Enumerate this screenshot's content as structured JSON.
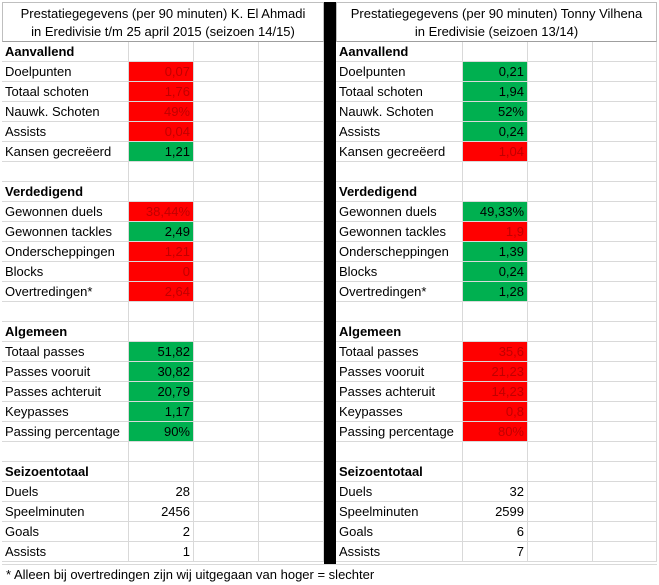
{
  "left": {
    "header": [
      "Prestatiegegevens (per 90 minuten) K. El Ahmadi",
      "in Eredivisie t/m 25 april 2015 (seizoen 14/15)"
    ],
    "sections": [
      {
        "title": "Aanvallend",
        "rows": [
          {
            "label": "Doelpunten",
            "value": "0,07",
            "color": "red"
          },
          {
            "label": "Totaal schoten",
            "value": "1,76",
            "color": "red"
          },
          {
            "label": "Nauwk. Schoten",
            "value": "49%",
            "color": "red"
          },
          {
            "label": "Assists",
            "value": "0,04",
            "color": "red"
          },
          {
            "label": "Kansen gecreëerd",
            "value": "1,21",
            "color": "green"
          }
        ]
      },
      {
        "title": "Verdedigend",
        "rows": [
          {
            "label": "Gewonnen duels",
            "value": "38,44%",
            "color": "red"
          },
          {
            "label": "Gewonnen tackles",
            "value": "2,49",
            "color": "green"
          },
          {
            "label": "Onderscheppingen",
            "value": "1,21",
            "color": "red"
          },
          {
            "label": "Blocks",
            "value": "0",
            "color": "red"
          },
          {
            "label": "Overtredingen*",
            "value": "2,64",
            "color": "red"
          }
        ]
      },
      {
        "title": "Algemeen",
        "rows": [
          {
            "label": "Totaal passes",
            "value": "51,82",
            "color": "green"
          },
          {
            "label": "Passes vooruit",
            "value": "30,82",
            "color": "green"
          },
          {
            "label": "Passes achteruit",
            "value": "20,79",
            "color": "green"
          },
          {
            "label": "Keypasses",
            "value": "1,17",
            "color": "green"
          },
          {
            "label": "Passing percentage",
            "value": "90%",
            "color": "green"
          }
        ]
      },
      {
        "title": "Seizoentotaal",
        "rows": [
          {
            "label": "Duels",
            "value": "28",
            "color": "plain"
          },
          {
            "label": "Speelminuten",
            "value": "2456",
            "color": "plain"
          },
          {
            "label": "Goals",
            "value": "2",
            "color": "plain"
          },
          {
            "label": "Assists",
            "value": "1",
            "color": "plain"
          }
        ]
      }
    ]
  },
  "right": {
    "header": [
      "Prestatiegegevens (per 90 minuten) Tonny Vilhena",
      "in Eredivisie (seizoen 13/14)"
    ],
    "sections": [
      {
        "title": "Aanvallend",
        "rows": [
          {
            "label": "Doelpunten",
            "value": "0,21",
            "color": "green"
          },
          {
            "label": "Totaal schoten",
            "value": "1,94",
            "color": "green"
          },
          {
            "label": "Nauwk. Schoten",
            "value": "52%",
            "color": "green"
          },
          {
            "label": "Assists",
            "value": "0,24",
            "color": "green"
          },
          {
            "label": "Kansen gecreëerd",
            "value": "1,04",
            "color": "red"
          }
        ]
      },
      {
        "title": "Verdedigend",
        "rows": [
          {
            "label": "Gewonnen duels",
            "value": "49,33%",
            "color": "green"
          },
          {
            "label": "Gewonnen tackles",
            "value": "1,9",
            "color": "red"
          },
          {
            "label": "Onderscheppingen",
            "value": "1,39",
            "color": "green"
          },
          {
            "label": "Blocks",
            "value": "0,24",
            "color": "green"
          },
          {
            "label": "Overtredingen*",
            "value": "1,28",
            "color": "green"
          }
        ]
      },
      {
        "title": "Algemeen",
        "rows": [
          {
            "label": "Totaal passes",
            "value": "35,6",
            "color": "red"
          },
          {
            "label": "Passes vooruit",
            "value": "21,23",
            "color": "red"
          },
          {
            "label": "Passes achteruit",
            "value": "14,23",
            "color": "red"
          },
          {
            "label": "Keypasses",
            "value": "0,8",
            "color": "red"
          },
          {
            "label": "Passing percentage",
            "value": "80%",
            "color": "red"
          }
        ]
      },
      {
        "title": "Seizoentotaal",
        "rows": [
          {
            "label": "Duels",
            "value": "32",
            "color": "plain"
          },
          {
            "label": "Speelminuten",
            "value": "2599",
            "color": "plain"
          },
          {
            "label": "Goals",
            "value": "6",
            "color": "plain"
          },
          {
            "label": "Assists",
            "value": "7",
            "color": "plain"
          }
        ]
      }
    ]
  },
  "footnote": "* Alleen bij overtredingen zijn wij uitgegaan van hoger = slechter",
  "colors": {
    "red": "#ff0000",
    "red_text": "#c00000",
    "green": "#00b050"
  }
}
